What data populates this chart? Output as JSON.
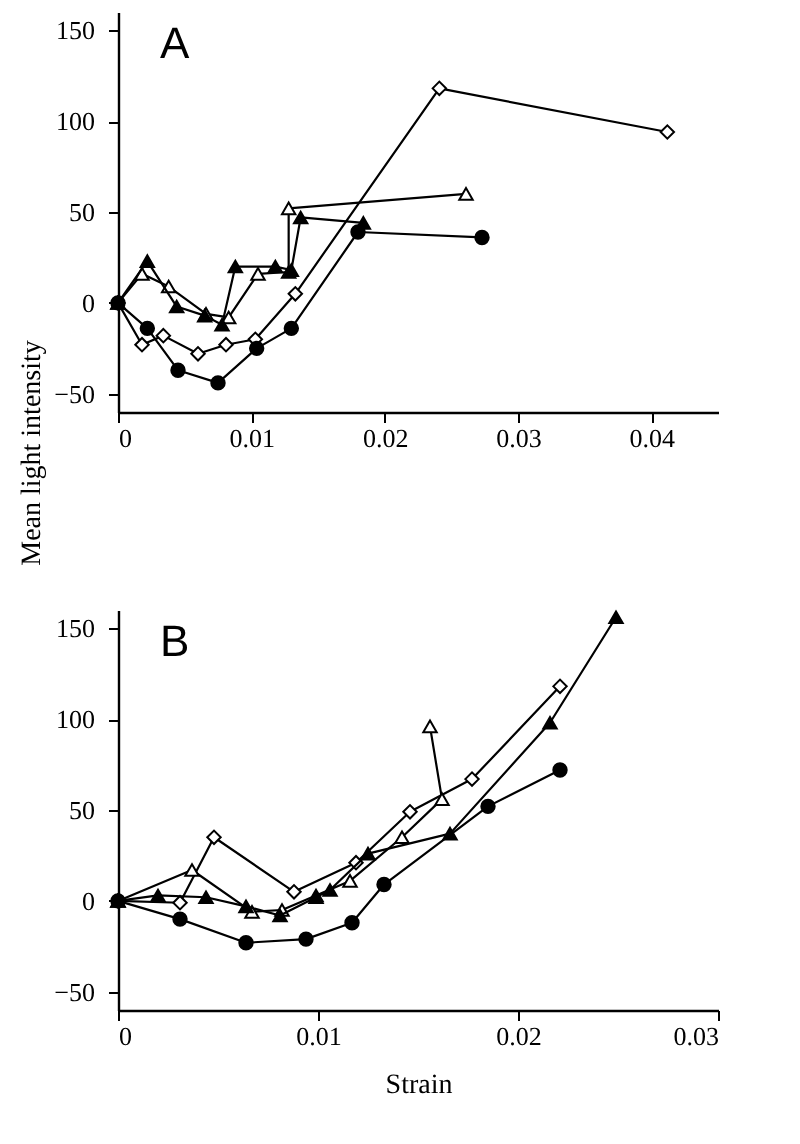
{
  "chart_data": [
    {
      "type": "line",
      "title": "A",
      "ylabel": "Mean light intensity",
      "xlim": [
        0,
        0.045
      ],
      "xticks": [
        0,
        0.01,
        0.02,
        0.03,
        0.04
      ],
      "ylim": [
        -60,
        160
      ],
      "yticks": [
        -50,
        0,
        50,
        100,
        150
      ],
      "grid": false,
      "series": [
        {
          "color": "#000000",
          "marker": "triangle",
          "colors": [
            "#ffffff",
            "#ffffff",
            "#ffffff",
            "#ffffff",
            "#ffffff",
            "#ffffff",
            "#ffffff",
            "#ffffff",
            "#ffffff"
          ],
          "x": [
            0,
            0.0018,
            0.0038,
            0.0066,
            0.0083,
            0.0105,
            0.0128,
            0.0128,
            0.0261
          ],
          "values": [
            0,
            16,
            9,
            -6,
            -8,
            16,
            17,
            52,
            60
          ]
        },
        {
          "color": "#000000",
          "marker": "diamond",
          "colors": [
            "#ffffff",
            "#ffffff",
            "#ffffff",
            "#ffffff",
            "#ffffff",
            "#ffffff",
            "#ffffff",
            "#ffffff",
            "#ffffff"
          ],
          "x": [
            0,
            0.0018,
            0.0034,
            0.006,
            0.0081,
            0.0103,
            0.0133,
            0.0241,
            0.0412
          ],
          "values": [
            0,
            -23,
            -18,
            -28,
            -23,
            -20,
            5,
            118,
            94
          ]
        },
        {
          "color": "#000000",
          "marker": "triangle",
          "x": [
            0,
            0.0022,
            0.0044,
            0.0065,
            0.0078,
            0.0088,
            0.0118,
            0.013,
            0.0137,
            0.0184
          ],
          "values": [
            0,
            23,
            -2,
            -7,
            -12,
            20,
            20,
            18,
            47,
            44
          ]
        },
        {
          "color": "#000000",
          "marker": "circle",
          "x": [
            0,
            0.0022,
            0.0045,
            0.0075,
            0.0104,
            0.013,
            0.018,
            0.0273
          ],
          "values": [
            0,
            -14,
            -37,
            -44,
            -25,
            -14,
            39,
            36
          ]
        }
      ]
    },
    {
      "type": "line",
      "title": "B",
      "xlabel": "Strain",
      "xlim": [
        0,
        0.03
      ],
      "xticks": [
        0,
        0.01,
        0.02,
        0.03
      ],
      "ylim": [
        -60,
        160
      ],
      "yticks": [
        -50,
        0,
        50,
        100,
        150
      ],
      "grid": false,
      "series": [
        {
          "color": "#000000",
          "marker": "diamond",
          "colors": [
            "#ffffff",
            "#ffffff",
            "#ffffff",
            "#ffffff",
            "#ffffff",
            "#ffffff",
            "#ffffff",
            "#ffffff"
          ],
          "x": [
            0,
            0.0031,
            0.0048,
            0.0088,
            0.0119,
            0.0146,
            0.0177,
            0.0221
          ],
          "values": [
            0,
            -1,
            35,
            5,
            21,
            49,
            67,
            118
          ]
        },
        {
          "color": "#000000",
          "marker": "triangle",
          "colors": [
            "#ffffff",
            "#ffffff",
            "#ffffff",
            "#ffffff",
            "#ffffff",
            "#ffffff",
            "#ffffff",
            "#ffffff",
            "#ffffff"
          ],
          "x": [
            0,
            0.0037,
            0.0067,
            0.0082,
            0.0099,
            0.0116,
            0.0142,
            0.0162,
            0.0156
          ],
          "values": [
            0,
            17,
            -6,
            -5,
            3,
            11,
            35,
            56,
            96
          ]
        },
        {
          "color": "#000000",
          "marker": "triangle",
          "x": [
            0,
            0.002,
            0.0044,
            0.0064,
            0.0081,
            0.0099,
            0.0106,
            0.0125,
            0.0166,
            0.0216,
            0.0249
          ],
          "values": [
            0,
            3,
            2,
            -3,
            -8,
            2,
            6,
            26,
            37,
            98,
            156
          ]
        },
        {
          "color": "#000000",
          "marker": "circle",
          "x": [
            0,
            0.0031,
            0.0064,
            0.0094,
            0.0117,
            0.0133,
            0.0185,
            0.0221
          ],
          "values": [
            0,
            -10,
            -23,
            -21,
            -12,
            9,
            52,
            72
          ]
        }
      ]
    }
  ]
}
